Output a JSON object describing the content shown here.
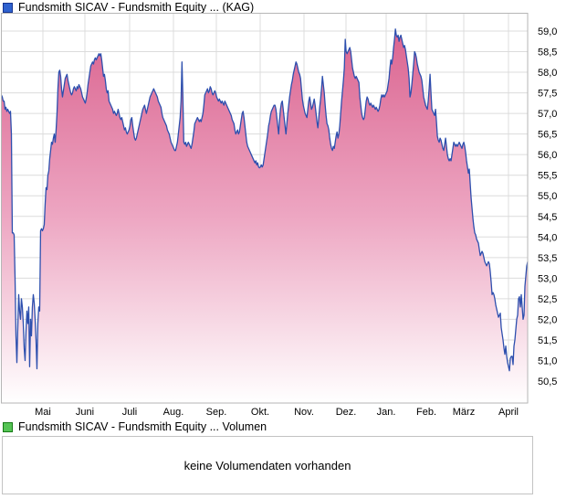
{
  "price_legend": {
    "label": "Fundsmith SICAV - Fundsmith Equity ... (KAG)",
    "swatch_fill": "#2f62cf",
    "swatch_border": "#16348f"
  },
  "volume_legend": {
    "label": "Fundsmith SICAV - Fundsmith Equity ... Volumen",
    "swatch_fill": "#55c455",
    "swatch_border": "#167a16"
  },
  "volume_panel": {
    "message": "keine Volumendaten vorhanden"
  },
  "chart_data": {
    "type": "area",
    "title": "Fundsmith SICAV - Fundsmith Equity ... (KAG)",
    "legend_position": "top-left",
    "grid": true,
    "y_axis": {
      "min": 50.5,
      "max": 59.0,
      "tick_step": 0.5,
      "side": "right",
      "tick_labels_top_to_bottom": [
        "59,0",
        "58,5",
        "58,0",
        "57,5",
        "57,0",
        "56,5",
        "56,0",
        "55,5",
        "55,0",
        "54,5",
        "54,0",
        "53,5",
        "53,0",
        "52,5",
        "52,0",
        "51,5",
        "51,0",
        "50,5"
      ]
    },
    "x_axis": {
      "ticks": [
        {
          "label": "Mai",
          "px": 47
        },
        {
          "label": "Juni",
          "px": 93
        },
        {
          "label": "Juli",
          "px": 142
        },
        {
          "label": "Aug.",
          "px": 190
        },
        {
          "label": "Sep.",
          "px": 237
        },
        {
          "label": "Okt.",
          "px": 285
        },
        {
          "label": "Nov.",
          "px": 333
        },
        {
          "label": "Dez.",
          "px": 379
        },
        {
          "label": "Jan.",
          "px": 423
        },
        {
          "label": "Feb.",
          "px": 467
        },
        {
          "label": "März",
          "px": 508
        },
        {
          "label": "April",
          "px": 557
        }
      ]
    },
    "colors": {
      "line": "#2d4fae",
      "fill_top": "#d95f8c",
      "fill_mid": "#eda6c2",
      "fill_bottom": "#ffffff",
      "grid": "#dcdcdc",
      "plot_border": "#b6b6b6"
    },
    "series": [
      {
        "name": "Fundsmith SICAV - Fundsmith Equity ... (KAG)",
        "values": [
          57.45,
          57.4,
          57.3,
          57.3,
          57.1,
          57.15,
          57.05,
          57.1,
          57.05,
          57.0,
          57.05,
          56.5,
          54.1,
          54.1,
          54.05,
          53.0,
          51.6,
          50.95,
          51.8,
          52.6,
          52.2,
          52.0,
          52.5,
          52.3,
          51.9,
          51.3,
          51.0,
          51.7,
          52.2,
          51.9,
          52.3,
          50.85,
          52.0,
          51.6,
          52.3,
          52.6,
          52.4,
          52.0,
          51.5,
          50.8,
          51.9,
          52.3,
          52.2,
          54.15,
          54.2,
          54.15,
          54.2,
          54.3,
          54.8,
          55.2,
          55.15,
          55.5,
          55.6,
          55.9,
          56.1,
          56.3,
          56.25,
          56.4,
          56.5,
          56.3,
          56.6,
          57.0,
          57.6,
          58.0,
          58.05,
          57.9,
          57.6,
          57.4,
          57.55,
          57.7,
          57.85,
          57.9,
          57.95,
          57.8,
          57.7,
          57.6,
          57.5,
          57.45,
          57.5,
          57.6,
          57.65,
          57.6,
          57.55,
          57.65,
          57.6,
          57.7,
          57.65,
          57.6,
          57.5,
          57.4,
          57.35,
          57.3,
          57.25,
          57.35,
          57.5,
          57.7,
          57.85,
          58.0,
          58.15,
          58.2,
          58.25,
          58.2,
          58.3,
          58.35,
          58.3,
          58.35,
          58.4,
          58.45,
          58.4,
          58.45,
          58.3,
          58.1,
          57.9,
          57.95,
          57.8,
          57.6,
          57.5,
          57.55,
          57.3,
          57.25,
          57.2,
          57.15,
          57.1,
          57.0,
          57.05,
          57.0,
          56.95,
          57.0,
          57.1,
          57.0,
          56.9,
          56.85,
          56.9,
          56.8,
          56.7,
          56.6,
          56.65,
          56.55,
          56.5,
          56.55,
          56.6,
          56.7,
          56.85,
          56.9,
          56.7,
          56.55,
          56.4,
          56.35,
          56.4,
          56.5,
          56.6,
          56.7,
          56.8,
          56.9,
          57.0,
          57.1,
          57.15,
          57.2,
          57.1,
          57.0,
          57.1,
          57.2,
          57.3,
          57.4,
          57.45,
          57.5,
          57.55,
          57.6,
          57.55,
          57.5,
          57.45,
          57.4,
          57.3,
          57.25,
          57.2,
          57.15,
          57.0,
          56.9,
          56.85,
          56.8,
          56.75,
          56.7,
          56.6,
          56.55,
          56.5,
          56.4,
          56.3,
          56.25,
          56.2,
          56.15,
          56.1,
          56.1,
          56.2,
          56.3,
          56.5,
          56.7,
          56.9,
          57.3,
          58.25,
          57.4,
          56.3,
          56.25,
          56.3,
          56.2,
          56.25,
          56.3,
          56.25,
          56.2,
          56.15,
          56.25,
          56.4,
          56.55,
          56.75,
          56.8,
          56.85,
          56.9,
          56.85,
          56.8,
          56.85,
          56.8,
          56.9,
          57.0,
          57.2,
          57.45,
          57.5,
          57.55,
          57.6,
          57.5,
          57.55,
          57.65,
          57.6,
          57.5,
          57.45,
          57.5,
          57.55,
          57.5,
          57.4,
          57.35,
          57.3,
          57.35,
          57.3,
          57.25,
          57.3,
          57.25,
          57.2,
          57.3,
          57.25,
          57.2,
          57.15,
          57.1,
          57.05,
          57.0,
          56.95,
          56.85,
          56.8,
          56.75,
          56.6,
          56.5,
          56.55,
          56.6,
          56.5,
          56.55,
          56.7,
          56.85,
          57.0,
          57.05,
          56.9,
          56.7,
          56.5,
          56.3,
          56.2,
          56.15,
          56.1,
          56.05,
          56.0,
          55.95,
          55.9,
          55.85,
          55.8,
          55.85,
          55.75,
          55.8,
          55.7,
          55.68,
          55.7,
          55.75,
          55.7,
          55.75,
          55.9,
          56.05,
          56.2,
          56.35,
          56.5,
          56.7,
          56.8,
          56.95,
          57.05,
          57.1,
          57.15,
          57.2,
          57.2,
          57.1,
          56.9,
          56.7,
          56.5,
          56.85,
          57.1,
          57.25,
          57.3,
          57.1,
          56.9,
          56.7,
          56.5,
          56.75,
          57.0,
          57.2,
          57.4,
          57.55,
          57.7,
          57.8,
          57.95,
          58.05,
          58.15,
          58.25,
          58.2,
          58.1,
          58.0,
          57.95,
          57.85,
          57.6,
          57.35,
          57.2,
          57.1,
          57.0,
          56.95,
          56.9,
          57.1,
          57.3,
          57.4,
          57.25,
          57.1,
          57.15,
          57.25,
          57.35,
          57.2,
          57.0,
          56.8,
          56.65,
          56.9,
          57.15,
          57.35,
          57.6,
          57.9,
          57.7,
          57.5,
          57.2,
          56.95,
          56.75,
          56.7,
          56.6,
          56.4,
          56.25,
          56.15,
          56.1,
          56.2,
          56.15,
          56.3,
          56.45,
          56.55,
          56.4,
          56.5,
          56.7,
          57.0,
          57.3,
          57.55,
          57.8,
          58.1,
          58.8,
          58.5,
          58.45,
          58.5,
          58.55,
          58.6,
          58.5,
          58.3,
          58.1,
          58.0,
          57.9,
          57.85,
          57.9,
          57.85,
          57.8,
          57.75,
          57.4,
          57.2,
          57.0,
          56.9,
          56.85,
          56.9,
          57.1,
          57.3,
          57.4,
          57.35,
          57.25,
          57.2,
          57.25,
          57.2,
          57.15,
          57.2,
          57.15,
          57.1,
          57.15,
          57.1,
          57.05,
          57.1,
          57.2,
          57.35,
          57.45,
          57.4,
          57.45,
          57.4,
          57.45,
          57.5,
          57.55,
          57.7,
          57.85,
          58.1,
          58.3,
          58.2,
          58.35,
          58.6,
          58.8,
          59.05,
          58.9,
          58.85,
          58.9,
          58.75,
          58.85,
          58.9,
          58.8,
          58.7,
          58.6,
          58.65,
          58.55,
          58.4,
          58.25,
          58.1,
          57.85,
          57.4,
          57.5,
          57.7,
          57.95,
          58.2,
          58.5,
          58.45,
          58.35,
          58.2,
          58.1,
          58.0,
          57.95,
          57.9,
          57.8,
          57.6,
          57.4,
          57.3,
          57.2,
          57.15,
          57.1,
          57.3,
          57.6,
          57.95,
          57.5,
          57.1,
          57.05,
          57.0,
          56.95,
          57.1,
          56.8,
          56.45,
          56.35,
          56.3,
          56.4,
          56.35,
          56.25,
          56.15,
          56.1,
          56.25,
          56.4,
          56.2,
          56.0,
          55.9,
          55.85,
          55.9,
          55.85,
          56.0,
          56.15,
          56.3,
          56.25,
          56.2,
          56.25,
          56.2,
          56.25,
          56.3,
          56.25,
          56.2,
          56.15,
          56.25,
          56.3,
          56.2,
          56.05,
          55.85,
          55.7,
          55.55,
          55.65,
          55.3,
          54.95,
          54.7,
          54.45,
          54.25,
          54.1,
          54.05,
          53.95,
          53.9,
          53.85,
          53.7,
          53.55,
          53.6,
          53.65,
          53.6,
          53.5,
          53.4,
          53.35,
          53.3,
          53.35,
          53.4,
          53.35,
          53.15,
          52.9,
          52.6,
          52.65,
          52.6,
          52.5,
          52.35,
          52.25,
          52.15,
          52.05,
          52.1,
          52.15,
          51.8,
          51.65,
          51.5,
          51.3,
          51.15,
          51.35,
          51.1,
          50.95,
          50.85,
          50.75,
          51.05,
          51.1,
          51.1,
          50.9,
          51.35,
          51.5,
          51.75,
          52.0,
          52.1,
          52.5,
          52.55,
          52.3,
          52.6,
          52.3,
          52.0,
          52.1,
          52.8,
          53.05,
          53.3,
          53.4
        ]
      }
    ]
  }
}
